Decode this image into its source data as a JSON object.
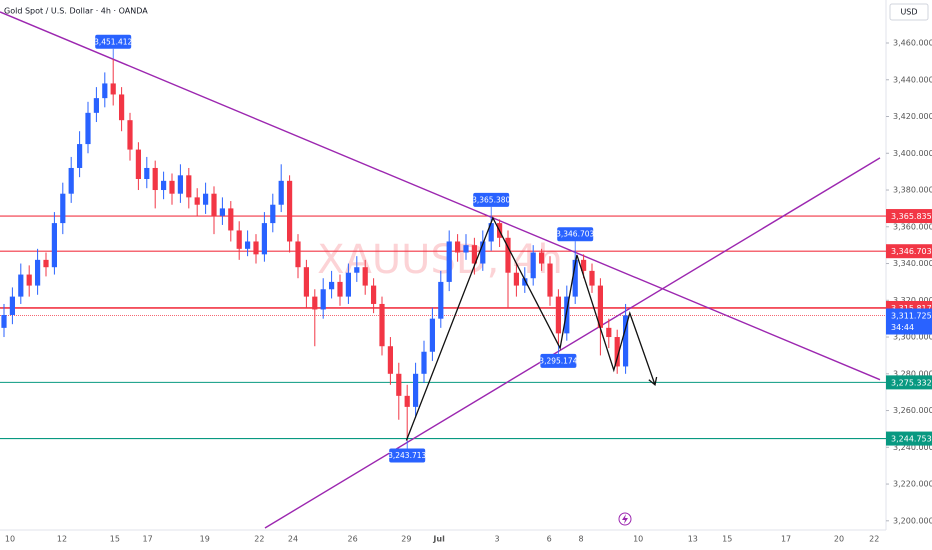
{
  "chart_data": {
    "type": "candlestick",
    "title": "Gold Spot / U.S. Dollar · 4h · OANDA",
    "watermark": "XAUUSD, 4h",
    "currency": "USD",
    "countdown": "34:44",
    "up_color": "#2962ff",
    "down_color": "#f23645",
    "open": [
      3305,
      3312,
      3322,
      3334,
      3328,
      3342,
      3338,
      3362,
      3378,
      3392,
      3405,
      3422,
      3430,
      3438,
      3432,
      3418,
      3402,
      3386,
      3392,
      3380,
      3385,
      3378,
      3388,
      3376,
      3372,
      3378,
      3366,
      3370,
      3358,
      3348,
      3352,
      3345,
      3362,
      3372,
      3385,
      3352,
      3338,
      3322,
      3315,
      3326,
      3330,
      3322,
      3335,
      3338,
      3328,
      3318,
      3295,
      3280,
      3268,
      3262,
      3280,
      3292,
      3310,
      3330,
      3352,
      3346,
      3350,
      3340,
      3352,
      3362,
      3354,
      3335,
      3328,
      3332,
      3346,
      3340,
      3322,
      3302,
      3322,
      3342,
      3336,
      3328,
      3305,
      3300,
      3284
    ],
    "high": [
      3318,
      3327,
      3340,
      3339,
      3348,
      3346,
      3368,
      3384,
      3398,
      3412,
      3428,
      3436,
      3444,
      3451.412,
      3436,
      3422,
      3406,
      3398,
      3396,
      3390,
      3389,
      3394,
      3392,
      3381,
      3384,
      3382,
      3376,
      3374,
      3363,
      3358,
      3356,
      3368,
      3378,
      3394,
      3388,
      3356,
      3342,
      3326,
      3332,
      3336,
      3334,
      3340,
      3344,
      3342,
      3332,
      3322,
      3300,
      3286,
      3274,
      3286,
      3298,
      3316,
      3336,
      3358,
      3356,
      3356,
      3354,
      3358,
      3365.38,
      3364,
      3358,
      3340,
      3338,
      3350,
      3348,
      3344,
      3326,
      3328,
      3346.703,
      3345,
      3340,
      3332,
      3310,
      3304,
      3318
    ],
    "low": [
      3300,
      3307,
      3318,
      3322,
      3323,
      3333,
      3334,
      3356,
      3373,
      3387,
      3400,
      3417,
      3425,
      3426,
      3412,
      3396,
      3380,
      3381,
      3370,
      3375,
      3372,
      3373,
      3370,
      3366,
      3367,
      3356,
      3361,
      3352,
      3342,
      3344,
      3340,
      3341,
      3357,
      3368,
      3346,
      3332,
      3316,
      3295,
      3310,
      3321,
      3317,
      3318,
      3330,
      3323,
      3313,
      3290,
      3274,
      3255,
      3243.713,
      3256,
      3275,
      3287,
      3305,
      3325,
      3341,
      3342,
      3334,
      3336,
      3347,
      3349,
      3316,
      3322,
      3324,
      3328,
      3336,
      3317,
      3295.174,
      3298,
      3318,
      3332,
      3324,
      3290,
      3294,
      3280,
      3280
    ],
    "close": [
      3312,
      3322,
      3334,
      3328,
      3342,
      3338,
      3362,
      3378,
      3392,
      3405,
      3422,
      3430,
      3438,
      3432,
      3418,
      3402,
      3386,
      3392,
      3380,
      3385,
      3378,
      3388,
      3376,
      3372,
      3378,
      3366,
      3370,
      3358,
      3348,
      3352,
      3345,
      3362,
      3372,
      3385,
      3352,
      3338,
      3322,
      3315,
      3326,
      3330,
      3322,
      3335,
      3338,
      3328,
      3318,
      3295,
      3280,
      3268,
      3262,
      3280,
      3292,
      3310,
      3330,
      3352,
      3346,
      3350,
      3340,
      3352,
      3362,
      3354,
      3335,
      3328,
      3332,
      3346,
      3340,
      3322,
      3302,
      3322,
      3342,
      3336,
      3328,
      3305,
      3300,
      3284,
      3311.725
    ],
    "xlim": [
      -0.476,
      104.286
    ],
    "xticks": [
      {
        "value": 0.71,
        "label": "10"
      },
      {
        "value": 6.9,
        "label": "12"
      },
      {
        "value": 13.2,
        "label": "15"
      },
      {
        "value": 17.1,
        "label": "17"
      },
      {
        "value": 23.9,
        "label": "19"
      },
      {
        "value": 30.4,
        "label": "22"
      },
      {
        "value": 34.4,
        "label": "24"
      },
      {
        "value": 41.5,
        "label": "26"
      },
      {
        "value": 47.9,
        "label": "29"
      },
      {
        "value": 51.8,
        "label": "Jul"
      },
      {
        "value": 58.7,
        "label": "3"
      },
      {
        "value": 64.9,
        "label": "6"
      },
      {
        "value": 68.7,
        "label": "8"
      },
      {
        "value": 75.5,
        "label": "10"
      },
      {
        "value": 82.0,
        "label": "13"
      },
      {
        "value": 86.1,
        "label": "15"
      },
      {
        "value": 93.1,
        "label": "17"
      },
      {
        "value": 99.4,
        "label": "20"
      },
      {
        "value": 103.6,
        "label": "22"
      }
    ],
    "ylim": [
      3195,
      3483.4
    ],
    "yticks": [
      {
        "value": 3200,
        "label": "3,200.000"
      },
      {
        "value": 3220,
        "label": "3,220.000"
      },
      {
        "value": 3240,
        "label": "3,240.000"
      },
      {
        "value": 3260,
        "label": "3,260.000"
      },
      {
        "value": 3280,
        "label": "3,280.000"
      },
      {
        "value": 3300,
        "label": "3,300.000"
      },
      {
        "value": 3320,
        "label": "3,320.000"
      },
      {
        "value": 3340,
        "label": "3,340.000"
      },
      {
        "value": 3360,
        "label": "3,360.000"
      },
      {
        "value": 3380,
        "label": "3,380.000"
      },
      {
        "value": 3400,
        "label": "3,400.000"
      },
      {
        "value": 3420,
        "label": "3,420.000"
      },
      {
        "value": 3440,
        "label": "3,440.000"
      },
      {
        "value": 3460,
        "label": "3,460.000"
      }
    ],
    "grid": false,
    "last_price": {
      "value": 3311.725,
      "label": "3,311.725",
      "color": "#2962ff"
    },
    "levels": [
      {
        "value": 3365.835,
        "label": "3,365.835",
        "color": "#f23645"
      },
      {
        "value": 3346.703,
        "label": "3,346.703",
        "color": "#f23645"
      },
      {
        "value": 3315.817,
        "label": "3,315.817",
        "color": "#f23645"
      },
      {
        "value": 3275.332,
        "label": "3,275.332",
        "color": "#089981"
      },
      {
        "value": 3244.753,
        "label": "3,244.753",
        "color": "#089981"
      }
    ],
    "callouts": [
      {
        "x": 13,
        "value": 3451.412,
        "label": "3,451.412",
        "side": "above"
      },
      {
        "x": 58,
        "value": 3365.38,
        "label": "3,365.380",
        "side": "above"
      },
      {
        "x": 68,
        "value": 3346.703,
        "label": "3,346.703",
        "side": "above"
      },
      {
        "x": 66,
        "value": 3295.174,
        "label": "3,295.174",
        "side": "below"
      },
      {
        "x": 48,
        "value": 3243.713,
        "label": "3,243.713",
        "side": "below"
      }
    ],
    "trendlines": [
      {
        "x": [
          -0.476,
          104.286
        ],
        "y": [
          3476.9,
          3276.8
        ],
        "color": "#9c27b0"
      },
      {
        "x": [
          31.07,
          104.286
        ],
        "y": [
          3196.1,
          3397.5
        ],
        "color": "#9c27b0"
      }
    ],
    "projection": {
      "x": [
        47.9,
        58.2,
        66.2,
        68.2,
        72.6,
        74.5,
        77.5
      ],
      "y": [
        3243.7,
        3364.8,
        3294,
        3344.7,
        3282,
        3313,
        3274
      ],
      "color": "#111111"
    }
  }
}
